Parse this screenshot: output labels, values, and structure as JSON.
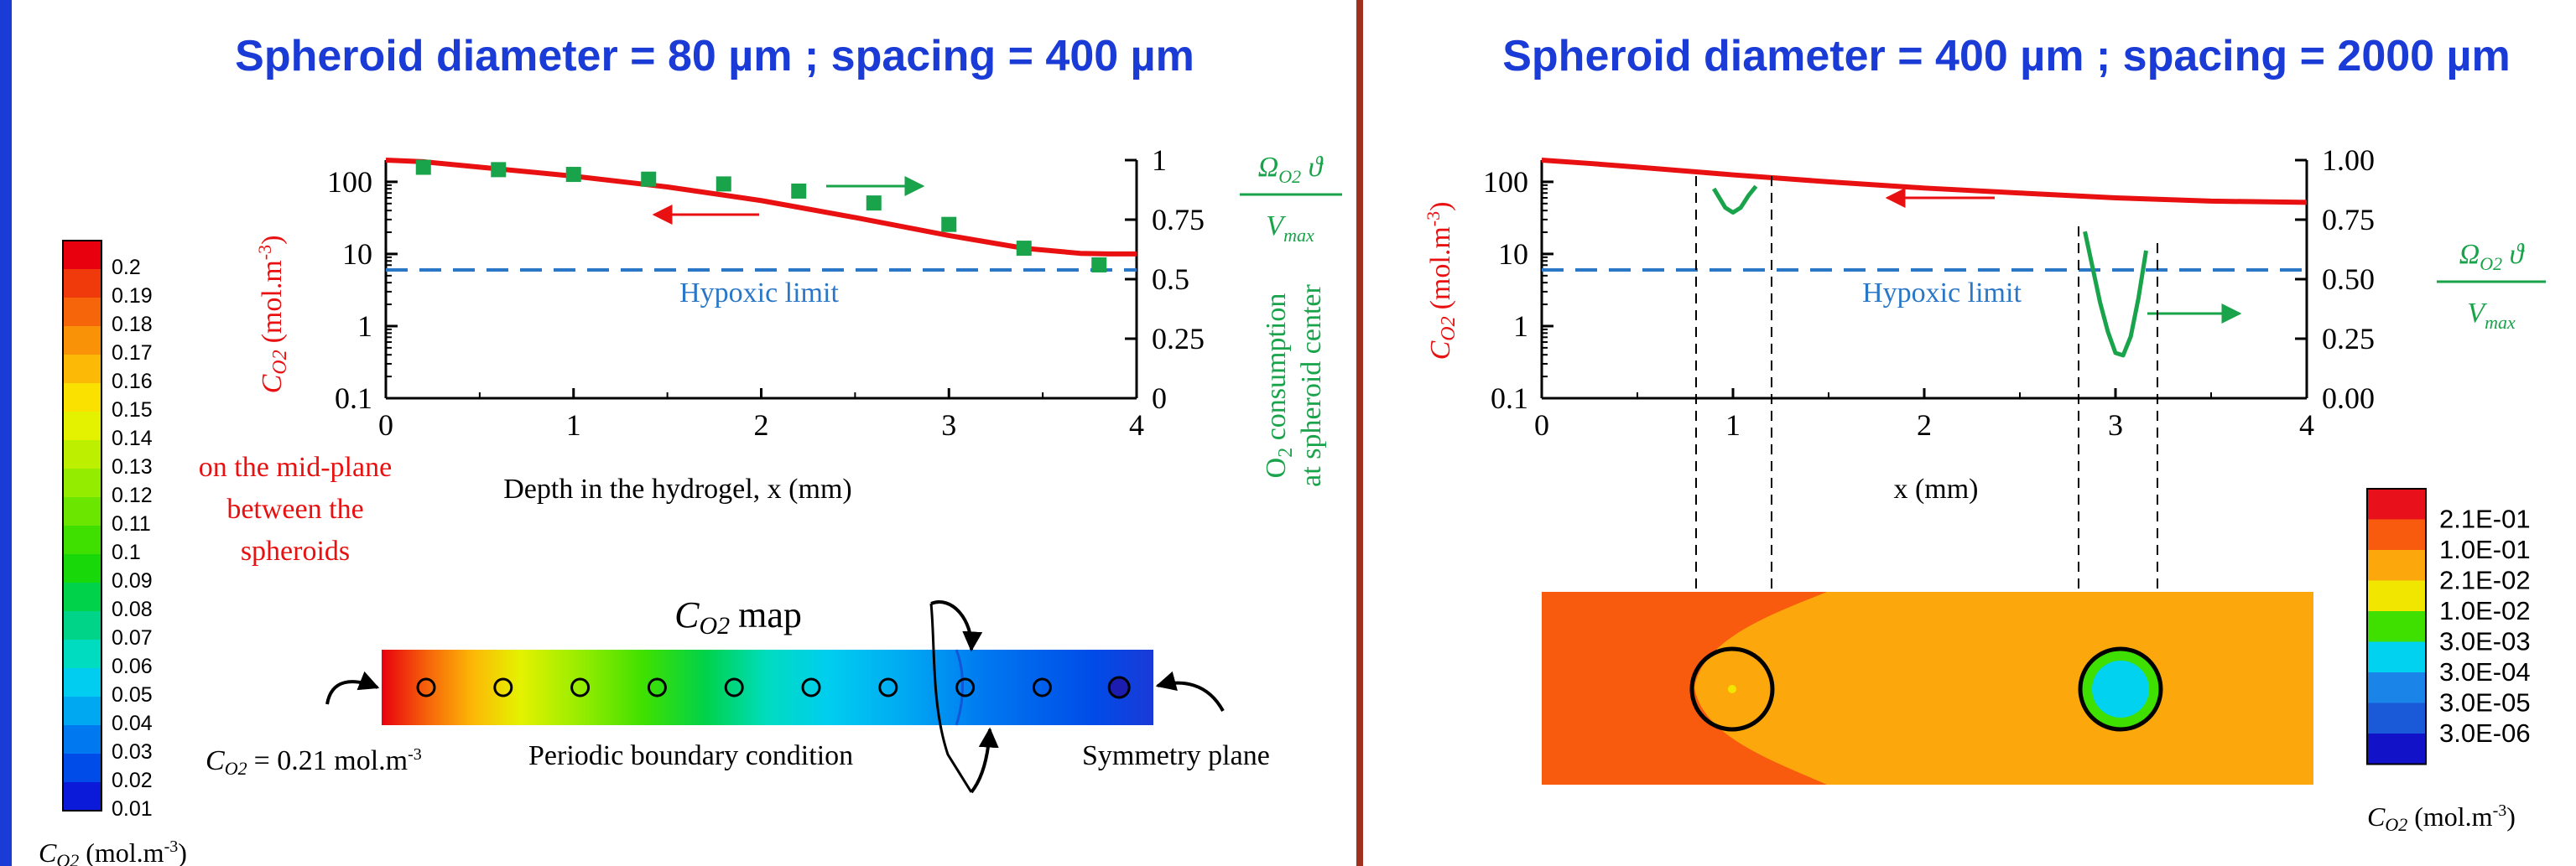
{
  "colors": {
    "left_border": "#1a3bd6",
    "divider": "#a0301e",
    "title": "#1a3bd6",
    "oxygen_curve": "#e81010",
    "consumption": "#19a34a",
    "hypoxic": "#2a77c8",
    "axis": "#000000"
  },
  "left_panel": {
    "title": "Spheroid diameter = 80 µm ; spacing = 400 µm",
    "map_title": "C_O2 map",
    "map_title_main": "C",
    "map_title_sub": "O2",
    "map_title_suffix": "map",
    "inlet_label_main": "C",
    "inlet_label_sub": "O2",
    "inlet_label_value": "= 0.21 mol.m",
    "inlet_label_exp": "-3",
    "periodic_label": "Periodic boundary condition",
    "symmetry_label": "Symmetry plane",
    "midplane_lines": [
      "on the mid-plane",
      "between the",
      "spheroids"
    ],
    "colorbar": {
      "values": [
        "0.2",
        "0.19",
        "0.18",
        "0.17",
        "0.16",
        "0.15",
        "0.14",
        "0.13",
        "0.12",
        "0.11",
        "0.1",
        "0.09",
        "0.08",
        "0.07",
        "0.06",
        "0.05",
        "0.04",
        "0.03",
        "0.02",
        "0.01"
      ],
      "colors": [
        "#e8000e",
        "#f03a0c",
        "#f6650a",
        "#fa9208",
        "#fcba06",
        "#fbe100",
        "#e4f200",
        "#bdf000",
        "#94ec00",
        "#6ae600",
        "#3fe000",
        "#19d80a",
        "#00d24a",
        "#00d488",
        "#00dcc0",
        "#00cdf0",
        "#00a8f2",
        "#0079f0",
        "#004ce8",
        "#0a1ad8"
      ],
      "label_main": "C",
      "label_sub": "O2",
      "label_unit": "(mol.m",
      "label_exp": "-3",
      "label_close": ")"
    }
  },
  "right_panel": {
    "title": "Spheroid diameter = 400 µm ; spacing = 2000 µm",
    "colorbar": {
      "values": [
        "2.1E-01",
        "1.0E-01",
        "2.1E-02",
        "1.0E-02",
        "3.0E-03",
        "3.0E-04",
        "3.0E-05",
        "3.0E-06"
      ],
      "colors": [
        "#e8101a",
        "#f85a0e",
        "#fca80c",
        "#f0e600",
        "#3fe000",
        "#00d2f0",
        "#1b84e8",
        "#1a5ad8",
        "#1212c8"
      ],
      "label_main": "C",
      "label_sub": "O2",
      "label_unit": "(mol.m",
      "label_exp": "-3",
      "label_close": ")"
    }
  },
  "chart_data": [
    {
      "type": "line",
      "title": "Spheroid diameter = 80 µm ; spacing = 400 µm",
      "xlabel": "Depth in the hydrogel, x (mm)",
      "xlim": [
        0,
        4
      ],
      "x_ticks": [
        "0",
        "1",
        "2",
        "3",
        "4"
      ],
      "y_log": true,
      "ylim": [
        0.1,
        200
      ],
      "y_ticks": [
        "100",
        "10",
        "1",
        "0.1"
      ],
      "ylabel_main": "C",
      "ylabel_sub": "O2",
      "ylabel_unit": "(mol.m",
      "ylabel_exp": "-3",
      "ylabel_close": ")",
      "y2lim": [
        0,
        1
      ],
      "y2_ticks": [
        "1",
        "0.75",
        "0.5",
        "0.25",
        "0"
      ],
      "y2_label_line1": "O",
      "y2_label_sub": "2",
      "y2_label_line1_rest": " consumption",
      "y2_label_line2": "at spheroid center",
      "y2_formula_num": "Ω",
      "y2_formula_num_sub": "O2",
      "y2_formula_num_rest": " ϑ",
      "y2_formula_den": "V",
      "y2_formula_den_sub": "max",
      "hypoxic_label": "Hypoxic limit",
      "hypoxic_value": 6,
      "series": [
        {
          "axis": "left",
          "x": [
            0,
            0.2,
            0.5,
            1.0,
            1.5,
            2.0,
            2.5,
            3.0,
            3.4,
            3.7,
            3.85,
            4.0
          ],
          "y": [
            200,
            190,
            160,
            120,
            85,
            55,
            32,
            18,
            12,
            10.2,
            10,
            10
          ]
        },
        {
          "axis": "right",
          "x": [
            0.2,
            0.6,
            1.0,
            1.4,
            1.8,
            2.2,
            2.6,
            3.0,
            3.4,
            3.8
          ],
          "y": [
            0.97,
            0.96,
            0.94,
            0.92,
            0.9,
            0.87,
            0.82,
            0.73,
            0.63,
            0.56
          ]
        }
      ]
    },
    {
      "type": "line",
      "title": "Spheroid diameter = 400 µm ; spacing = 2000 µm",
      "xlabel": "x (mm)",
      "xlim": [
        0,
        4
      ],
      "x_ticks": [
        "0",
        "1",
        "2",
        "3",
        "4"
      ],
      "y_log": true,
      "ylim": [
        0.1,
        200
      ],
      "y_ticks": [
        "100",
        "10",
        "1",
        "0.1"
      ],
      "ylabel_main": "C",
      "ylabel_sub": "O2",
      "ylabel_unit": "(mol.m",
      "ylabel_exp": "-3",
      "ylabel_close": ")",
      "y2lim": [
        0,
        1
      ],
      "y2_ticks": [
        "1.00",
        "0.75",
        "0.50",
        "0.25",
        "0.00"
      ],
      "y2_formula_num": "Ω",
      "y2_formula_num_sub": "O2",
      "y2_formula_num_rest": " ϑ",
      "y2_formula_den": "V",
      "y2_formula_den_sub": "max",
      "hypoxic_label": "Hypoxic limit",
      "hypoxic_value": 6,
      "series": [
        {
          "axis": "left",
          "x": [
            0,
            0.25,
            0.5,
            1.0,
            1.5,
            2.0,
            2.5,
            3.0,
            3.5,
            4.0
          ],
          "y": [
            200,
            180,
            160,
            125,
            100,
            82,
            70,
            60,
            54,
            52
          ]
        },
        {
          "axis": "right",
          "x": [
            0.9,
            0.93,
            0.96,
            1.0,
            1.04,
            1.08,
            1.12
          ],
          "y": [
            0.88,
            0.84,
            0.8,
            0.78,
            0.8,
            0.85,
            0.89
          ]
        },
        {
          "axis": "right",
          "x": [
            2.84,
            2.88,
            2.92,
            2.96,
            3.0,
            3.04,
            3.08,
            3.12,
            3.16
          ],
          "y": [
            0.7,
            0.55,
            0.4,
            0.28,
            0.19,
            0.18,
            0.26,
            0.42,
            0.62
          ]
        }
      ]
    }
  ]
}
